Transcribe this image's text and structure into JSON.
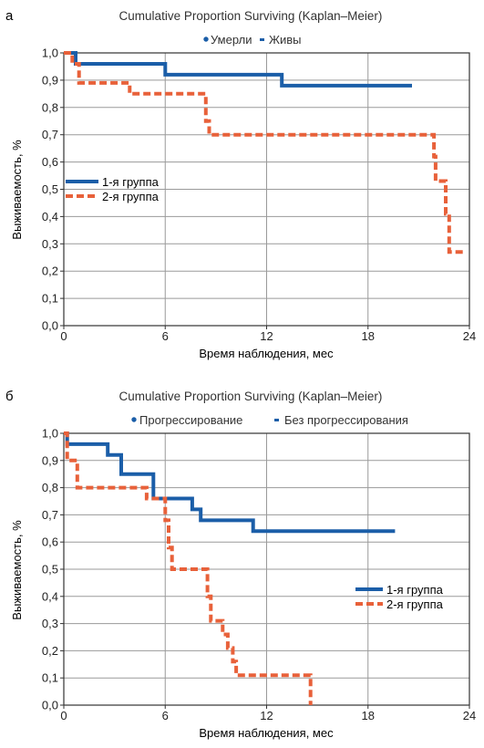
{
  "colors": {
    "group1": "#1b5ea8",
    "group2": "#e8613a",
    "grid": "#9a9a9a",
    "frame": "#333333"
  },
  "chart_data": [
    {
      "panel_label": "а",
      "type": "line",
      "step": true,
      "title": "Cumulative Proportion Surviving (Kaplan–Meier)",
      "top_legend": {
        "filled_marker_label": "Умерли",
        "dash_marker_label": "Живы"
      },
      "xlabel": "Время наблюдения, мес",
      "ylabel": "Выживаемость, %",
      "xlim": [
        0,
        24
      ],
      "ylim": [
        0,
        1
      ],
      "xticks": [
        0,
        6,
        12,
        18,
        24
      ],
      "yticks": [
        0,
        0.1,
        0.2,
        0.3,
        0.4,
        0.5,
        0.6,
        0.7,
        0.8,
        0.9,
        1.0
      ],
      "ytick_labels": [
        "0,0",
        "0,1",
        "0,2",
        "0,3",
        "0,4",
        "0,5",
        "0,6",
        "0,7",
        "0,8",
        "0,9",
        "1,0"
      ],
      "grid": true,
      "legend_position": "left",
      "series": [
        {
          "name": "1-я группа",
          "color_key": "group1",
          "points": [
            [
              0,
              1.0
            ],
            [
              0.7,
              1.0
            ],
            [
              0.7,
              0.96
            ],
            [
              6.0,
              0.96
            ],
            [
              6.0,
              0.92
            ],
            [
              12.9,
              0.92
            ],
            [
              12.9,
              0.88
            ],
            [
              20.6,
              0.88
            ]
          ]
        },
        {
          "name": "2-я группа",
          "color_key": "group2",
          "dashed": true,
          "points": [
            [
              0,
              1.0
            ],
            [
              0.5,
              1.0
            ],
            [
              0.5,
              0.96
            ],
            [
              0.9,
              0.96
            ],
            [
              0.9,
              0.89
            ],
            [
              3.9,
              0.89
            ],
            [
              3.9,
              0.85
            ],
            [
              8.4,
              0.85
            ],
            [
              8.4,
              0.75
            ],
            [
              8.6,
              0.75
            ],
            [
              8.6,
              0.7
            ],
            [
              21.9,
              0.7
            ],
            [
              21.9,
              0.62
            ],
            [
              22.0,
              0.62
            ],
            [
              22.0,
              0.53
            ],
            [
              22.6,
              0.53
            ],
            [
              22.6,
              0.41
            ],
            [
              22.8,
              0.41
            ],
            [
              22.8,
              0.27
            ],
            [
              23.8,
              0.27
            ]
          ]
        }
      ]
    },
    {
      "panel_label": "б",
      "type": "line",
      "step": true,
      "title": "Cumulative Proportion Surviving (Kaplan–Meier)",
      "top_legend": {
        "filled_marker_label": "Прогрессирование",
        "dash_marker_label": "Без прогрессирования"
      },
      "xlabel": "Время наблюдения, мес",
      "ylabel": "Выживаемость, %",
      "xlim": [
        0,
        24
      ],
      "ylim": [
        0,
        1
      ],
      "xticks": [
        0,
        6,
        12,
        18,
        24
      ],
      "yticks": [
        0,
        0.1,
        0.2,
        0.3,
        0.4,
        0.5,
        0.6,
        0.7,
        0.8,
        0.9,
        1.0
      ],
      "ytick_labels": [
        "0,0",
        "0,1",
        "0,2",
        "0,3",
        "0,4",
        "0,5",
        "0,6",
        "0,7",
        "0,8",
        "0,9",
        "1,0"
      ],
      "grid": true,
      "legend_position": "right",
      "series": [
        {
          "name": "1-я группа",
          "color_key": "group1",
          "points": [
            [
              0,
              1.0
            ],
            [
              0.2,
              1.0
            ],
            [
              0.2,
              0.96
            ],
            [
              2.6,
              0.96
            ],
            [
              2.6,
              0.92
            ],
            [
              3.4,
              0.92
            ],
            [
              3.4,
              0.85
            ],
            [
              5.3,
              0.85
            ],
            [
              5.3,
              0.76
            ],
            [
              7.6,
              0.76
            ],
            [
              7.6,
              0.72
            ],
            [
              8.1,
              0.72
            ],
            [
              8.1,
              0.68
            ],
            [
              11.2,
              0.68
            ],
            [
              11.2,
              0.64
            ],
            [
              19.6,
              0.64
            ]
          ]
        },
        {
          "name": "2-я группа",
          "color_key": "group2",
          "dashed": true,
          "points": [
            [
              0,
              1.0
            ],
            [
              0.2,
              1.0
            ],
            [
              0.2,
              0.9
            ],
            [
              0.8,
              0.9
            ],
            [
              0.8,
              0.8
            ],
            [
              4.9,
              0.8
            ],
            [
              4.9,
              0.76
            ],
            [
              6.0,
              0.76
            ],
            [
              6.0,
              0.68
            ],
            [
              6.2,
              0.68
            ],
            [
              6.2,
              0.58
            ],
            [
              6.4,
              0.58
            ],
            [
              6.4,
              0.5
            ],
            [
              8.5,
              0.5
            ],
            [
              8.5,
              0.4
            ],
            [
              8.7,
              0.4
            ],
            [
              8.7,
              0.31
            ],
            [
              9.4,
              0.31
            ],
            [
              9.4,
              0.26
            ],
            [
              9.7,
              0.26
            ],
            [
              9.7,
              0.21
            ],
            [
              10.0,
              0.21
            ],
            [
              10.0,
              0.16
            ],
            [
              10.2,
              0.16
            ],
            [
              10.2,
              0.11
            ],
            [
              14.6,
              0.11
            ],
            [
              14.6,
              0.0
            ]
          ]
        }
      ]
    }
  ]
}
